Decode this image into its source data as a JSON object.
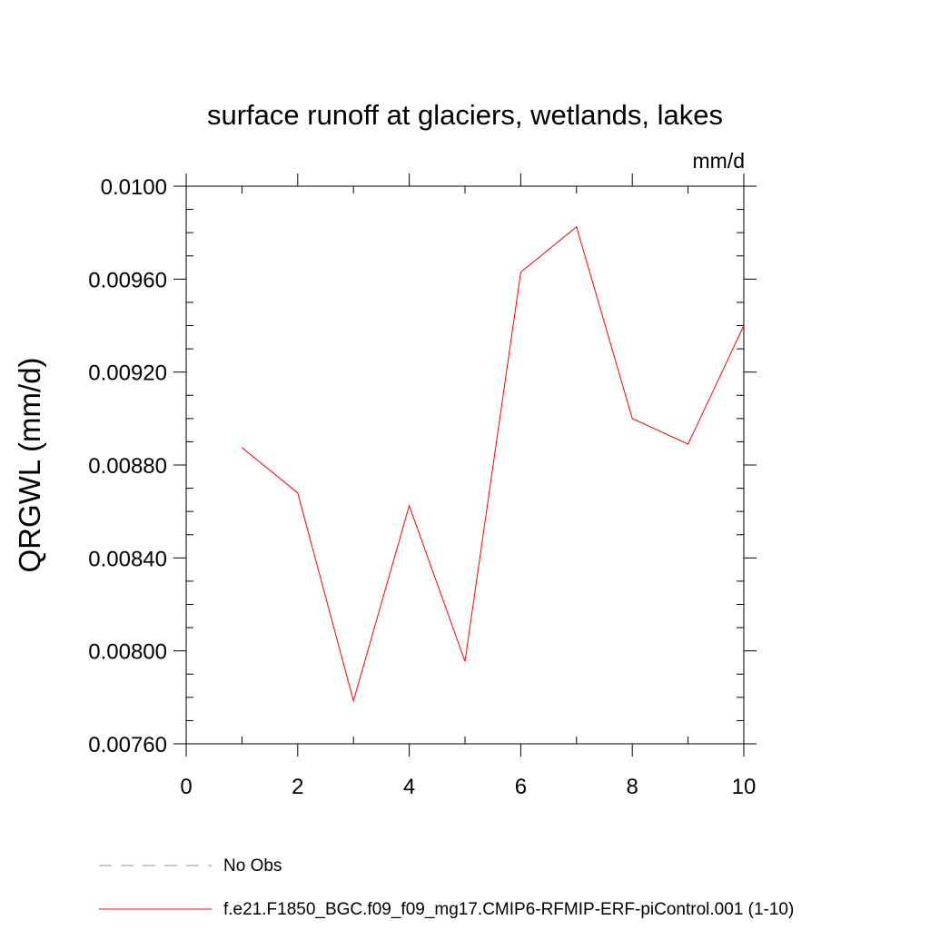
{
  "chart_data": {
    "type": "line",
    "title": "surface runoff at glaciers, wetlands, lakes",
    "units": "mm/d",
    "ylabel": "QRGWL  (mm/d)",
    "xlabel": "",
    "xlim": [
      0,
      10
    ],
    "ylim": [
      0.0076,
      0.01
    ],
    "x_ticks": [
      0,
      2,
      4,
      6,
      8,
      10
    ],
    "x_tick_labels": [
      "0",
      "2",
      "4",
      "6",
      "8",
      "10"
    ],
    "x_minor_step": 1,
    "y_ticks": [
      0.0076,
      0.008,
      0.0084,
      0.0088,
      0.0092,
      0.0096,
      0.01
    ],
    "y_tick_labels": [
      "0.00760",
      "0.00800",
      "0.00840",
      "0.00880",
      "0.00920",
      "0.00960",
      "0.0100"
    ],
    "y_minor_step": 0.0001,
    "grid": false,
    "legend_position": "bottom-left",
    "series": [
      {
        "name": "No Obs",
        "color": "#8c8cc8",
        "dash": "dashed",
        "x": [],
        "values": []
      },
      {
        "name": "f.e21.F1850_BGC.f09_f09_mg17.CMIP6-RFMIP-ERF-piControl.001 (1-10)",
        "color": "#ff0000",
        "dash": "solid",
        "x": [
          1,
          2,
          3,
          4,
          5,
          6,
          7,
          8,
          9,
          10
        ],
        "values": [
          0.008875,
          0.00868,
          0.007785,
          0.008625,
          0.007955,
          0.00963,
          0.009825,
          0.009,
          0.00889,
          0.0094
        ]
      }
    ]
  }
}
